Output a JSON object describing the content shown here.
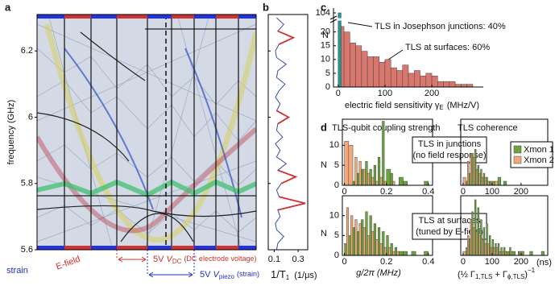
{
  "chart_data": [
    {
      "type": "image",
      "panel_label": "a",
      "ylabel": "frequency (GHz)",
      "ylim": [
        5.6,
        6.31
      ],
      "yticks": [
        5.6,
        5.8,
        6,
        6.2
      ],
      "annotations": [
        {
          "text": "strain",
          "color": "#2233bb"
        },
        {
          "text": "E-field",
          "color": "#d0312d"
        }
      ],
      "dc_label": {
        "prefix": "5V",
        "symbol": "V",
        "sub": "DC",
        "suffix": "(DC electrode voltage)",
        "color": "#d0312d"
      },
      "piezo_label": {
        "prefix": "5V",
        "symbol": "V",
        "sub": "piezo",
        "suffix": "(strain)",
        "color": "#2233bb"
      }
    },
    {
      "type": "line",
      "panel_label": "b",
      "orientation": "vertical",
      "xlabel": {
        "main": "1/T",
        "sub": "1",
        "unit": "(1/μs)"
      },
      "xlim": [
        0.05,
        0.38
      ],
      "xticks": [
        0.1,
        0.3
      ],
      "y": [
        5.6,
        5.62,
        5.64,
        5.66,
        5.68,
        5.7,
        5.72,
        5.74,
        5.76,
        5.78,
        5.8,
        5.82,
        5.84,
        5.86,
        5.88,
        5.9,
        5.92,
        5.94,
        5.96,
        5.98,
        6.0,
        6.02,
        6.04,
        6.06,
        6.08,
        6.1,
        6.12,
        6.14,
        6.16,
        6.18,
        6.2,
        6.22,
        6.24,
        6.26,
        6.28,
        6.3
      ],
      "series": [
        {
          "color": "#3a4aa8",
          "values": [
            0.12,
            0.13,
            0.18,
            0.12,
            0.11,
            0.15,
            0.13,
            0.36,
            0.14,
            0.12,
            0.16,
            0.28,
            0.13,
            0.2,
            0.12,
            0.15,
            0.11,
            0.17,
            0.12,
            0.13,
            0.22,
            0.12,
            0.15,
            0.11,
            0.14,
            0.19,
            0.12,
            0.13,
            0.2,
            0.12,
            0.11,
            0.14,
            0.26,
            0.13,
            0.18,
            0.12
          ]
        },
        {
          "color": "#d0312d",
          "values": [
            null,
            null,
            null,
            null,
            null,
            null,
            0.13,
            0.36,
            0.14,
            null,
            0.16,
            0.28,
            0.13,
            null,
            null,
            null,
            null,
            null,
            null,
            0.13,
            0.22,
            0.12,
            null,
            null,
            null,
            null,
            null,
            null,
            null,
            null,
            null,
            0.14,
            0.26,
            0.13,
            null,
            null
          ]
        }
      ]
    },
    {
      "type": "histogram",
      "panel_label": "c",
      "ylabel": "N",
      "xlabel": {
        "main": "electric field sensitivity γ",
        "sub": "E",
        "unit": "(MHz/V)"
      },
      "annotations": [
        "TLS in Josephson junctions: 40%",
        "TLS at surfaces: 60%"
      ],
      "xlim": [
        -10,
        310
      ],
      "xticks": [
        0,
        100,
        200
      ],
      "ylim": [
        0,
        106
      ],
      "ybreak": [
        24,
        102
      ],
      "yticks": [
        0,
        5,
        10,
        15,
        20,
        104
      ],
      "bins": [
        0,
        12.5,
        25,
        37.5,
        50,
        62.5,
        75,
        87.5,
        100,
        112.5,
        125,
        137.5,
        150,
        162.5,
        175,
        187.5,
        200,
        212.5,
        225,
        237.5,
        250,
        262.5,
        275,
        287.5
      ],
      "series": [
        {
          "color": "#1f9a9a",
          "values": [
            104,
            0,
            0,
            0,
            0,
            0,
            0,
            0,
            0,
            0,
            0,
            0,
            0,
            0,
            0,
            0,
            0,
            0,
            0,
            0,
            0,
            0,
            0
          ]
        },
        {
          "color": "#d9776f",
          "values": [
            22,
            20,
            16,
            15,
            13,
            11,
            11,
            9,
            10,
            7,
            6,
            8,
            5,
            6,
            4,
            5,
            4,
            2,
            2,
            2,
            1,
            1,
            1
          ]
        }
      ]
    },
    {
      "type": "histogram",
      "panel_label": "d",
      "title": "TLS-qubit coupling strength",
      "ylabel": "N",
      "annotation": [
        "TLS in junctions",
        "(no field response)"
      ],
      "xlim": [
        -0.01,
        0.42
      ],
      "xticks": [
        0,
        0.2,
        0.4
      ],
      "ylim": [
        0,
        16.5
      ],
      "yticks": [
        0,
        5,
        10
      ],
      "bins": [
        0,
        0.02,
        0.04,
        0.06,
        0.08,
        0.1,
        0.12,
        0.14,
        0.16,
        0.18,
        0.2,
        0.22,
        0.24,
        0.26,
        0.28,
        0.3,
        0.32,
        0.34,
        0.36,
        0.38,
        0.4,
        0.42
      ],
      "series": [
        {
          "color": "#6aa43a",
          "values": [
            0,
            0,
            1,
            3,
            4,
            6,
            4,
            5,
            7,
            16,
            4,
            3,
            0,
            2,
            1,
            0,
            0,
            0,
            0,
            1,
            0
          ]
        },
        {
          "color": "#f5a77a",
          "values": [
            11,
            10,
            7,
            6,
            4,
            3,
            2,
            1,
            2,
            1,
            0,
            1,
            0,
            0,
            0,
            0,
            0,
            0,
            0,
            0,
            0
          ]
        }
      ]
    },
    {
      "type": "histogram",
      "title": "TLS coherence",
      "xlim": [
        -8,
        292
      ],
      "xticks": [
        0,
        100,
        200
      ],
      "ylim": [
        0,
        16.5
      ],
      "bins": [
        0,
        10,
        20,
        30,
        40,
        50,
        60,
        70,
        80,
        90,
        100,
        110,
        120,
        130,
        140,
        150,
        160,
        170,
        180,
        190,
        200,
        210,
        220,
        230,
        240,
        250,
        260,
        270,
        280
      ],
      "series": [
        {
          "name": "Xmon 1",
          "color": "#6aa43a",
          "values": [
            0,
            1,
            3,
            8,
            9,
            5,
            4,
            3,
            2,
            1,
            1,
            0,
            2,
            0,
            1,
            0,
            0,
            0,
            0,
            0,
            0,
            0,
            0,
            0,
            0,
            0,
            0,
            0
          ]
        },
        {
          "name": "Xmon 2",
          "color": "#f5a77a",
          "values": [
            2,
            6,
            8,
            7,
            4,
            3,
            2,
            2,
            1,
            1,
            0,
            1,
            0,
            0,
            0,
            0,
            0,
            0,
            0,
            0,
            0,
            0,
            0,
            0,
            0,
            0,
            0,
            0
          ]
        }
      ]
    },
    {
      "type": "histogram",
      "ylabel": "N",
      "xlabel": "g/2π (MHz)",
      "annotation": [
        "TLS at surfaces",
        "(tuned by E-field)"
      ],
      "xlim": [
        -0.01,
        0.42
      ],
      "xticks": [
        0,
        0.2,
        0.4
      ],
      "ylim": [
        0,
        15
      ],
      "yticks": [
        0,
        5,
        10
      ],
      "bins": [
        0,
        0.02,
        0.04,
        0.06,
        0.08,
        0.1,
        0.12,
        0.14,
        0.16,
        0.18,
        0.2,
        0.22,
        0.24,
        0.26,
        0.28,
        0.3,
        0.32,
        0.34,
        0.36,
        0.38,
        0.4,
        0.42
      ],
      "series": [
        {
          "color": "#6aa43a",
          "values": [
            3,
            5,
            7,
            6,
            9,
            11,
            10,
            8,
            7,
            6,
            5,
            3,
            2,
            1,
            1,
            0,
            1,
            0,
            0,
            1,
            0
          ]
        },
        {
          "color": "#f5a77a",
          "values": [
            12,
            10,
            9,
            8,
            7,
            5,
            6,
            4,
            3,
            2,
            2,
            1,
            1,
            0,
            0,
            0,
            0,
            0,
            0,
            0,
            0
          ]
        }
      ]
    },
    {
      "type": "histogram",
      "xlabel": {
        "open": "(½ Γ",
        "sub1": "1,TLS",
        "mid": " + Γ",
        "sub2": "ϕ,TLS",
        "close": ")",
        "sup": "−1"
      },
      "xunit": "(ns)",
      "xlim": [
        -8,
        292
      ],
      "xticks": [
        0,
        100,
        200
      ],
      "ylim": [
        0,
        15
      ],
      "bins": [
        0,
        10,
        20,
        30,
        40,
        50,
        60,
        70,
        80,
        90,
        100,
        110,
        120,
        130,
        140,
        150,
        160,
        170,
        180,
        190,
        200,
        210,
        220,
        230,
        240,
        250,
        260,
        270,
        280
      ],
      "series": [
        {
          "color": "#6aa43a",
          "values": [
            0,
            2,
            4,
            11,
            14,
            12,
            9,
            7,
            8,
            5,
            4,
            3,
            3,
            2,
            2,
            1,
            2,
            1,
            0,
            1,
            1,
            0,
            0,
            1,
            0,
            0,
            0,
            1
          ]
        },
        {
          "color": "#f5a77a",
          "values": [
            1,
            5,
            9,
            7,
            6,
            5,
            4,
            3,
            3,
            2,
            2,
            2,
            1,
            1,
            1,
            0,
            1,
            0,
            0,
            1,
            0,
            0,
            0,
            0,
            0,
            0,
            0,
            0
          ]
        }
      ]
    }
  ]
}
